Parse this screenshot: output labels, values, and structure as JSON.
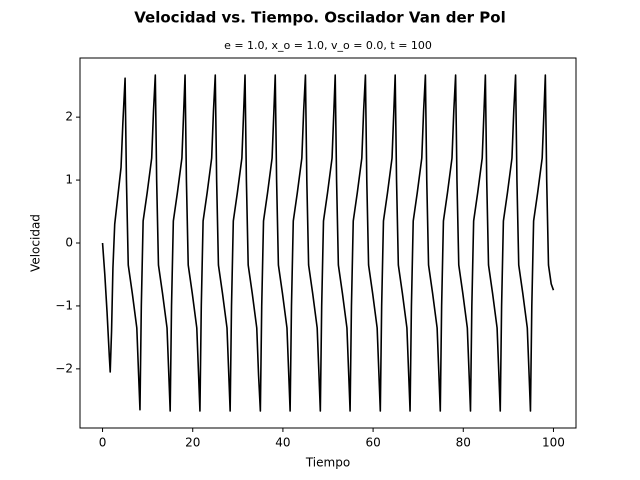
{
  "chart_data": {
    "type": "line",
    "title": "Velocidad vs. Tiempo. Oscilador Van der Pol",
    "subtitle": "e = 1.0, x_o = 1.0, v_o = 0.0, t = 100",
    "x_label": "Tiempo",
    "y_label": "Velocidad",
    "xlim": [
      -5,
      105
    ],
    "ylim": [
      -2.94,
      2.94
    ],
    "xticks": [
      0,
      20,
      40,
      60,
      80,
      100
    ],
    "yticks": [
      {
        "value": -2,
        "label": "−2"
      },
      {
        "value": -1,
        "label": "−1"
      },
      0,
      1,
      2
    ],
    "grid": false,
    "series": [
      {
        "color": "#000000",
        "x": [
          0,
          0.5,
          1.0,
          1.5,
          1.7,
          2.0,
          2.3,
          2.7,
          3.4,
          4.1,
          4.5,
          5.0,
          5.3,
          5.7,
          6.6,
          7.6,
          8.0,
          8.3,
          8.6,
          9.0,
          9.9,
          10.9,
          11.3,
          11.7,
          12.0,
          12.4,
          13.3,
          14.3,
          14.7,
          15.0,
          15.3,
          15.7,
          16.6,
          17.6,
          18.0,
          18.3,
          18.6,
          19.0,
          19.9,
          20.9,
          21.3,
          21.6,
          21.9,
          22.3,
          23.2,
          24.2,
          24.6,
          25.0,
          25.3,
          25.7,
          26.6,
          27.6,
          28.0,
          28.3,
          28.6,
          29.0,
          29.9,
          30.9,
          31.3,
          31.6,
          31.9,
          32.3,
          33.2,
          34.2,
          34.6,
          35.0,
          35.3,
          35.7,
          36.6,
          37.6,
          38.0,
          38.3,
          38.6,
          39.0,
          39.9,
          40.9,
          41.3,
          41.6,
          41.9,
          42.3,
          43.2,
          44.2,
          44.6,
          45.0,
          45.3,
          45.7,
          46.6,
          47.6,
          48.0,
          48.3,
          48.6,
          49.0,
          49.9,
          50.9,
          51.3,
          51.6,
          51.9,
          52.3,
          53.2,
          54.2,
          54.6,
          54.9,
          55.2,
          55.6,
          56.5,
          57.5,
          57.9,
          58.3,
          58.6,
          59.0,
          59.9,
          60.9,
          61.3,
          61.6,
          61.9,
          62.3,
          63.2,
          64.2,
          64.6,
          64.9,
          65.2,
          65.6,
          66.5,
          67.5,
          67.9,
          68.2,
          68.5,
          68.9,
          69.8,
          70.8,
          71.2,
          71.6,
          71.9,
          72.3,
          73.2,
          74.2,
          74.6,
          74.9,
          75.2,
          75.6,
          76.5,
          77.5,
          77.9,
          78.3,
          78.6,
          79.0,
          79.9,
          80.9,
          81.3,
          81.6,
          81.9,
          82.3,
          83.2,
          84.2,
          84.6,
          84.9,
          85.2,
          85.6,
          86.5,
          87.5,
          87.9,
          88.2,
          88.5,
          88.9,
          89.8,
          90.8,
          91.2,
          91.6,
          91.9,
          92.3,
          93.2,
          94.2,
          94.6,
          94.9,
          95.2,
          95.6,
          96.5,
          97.5,
          97.9,
          98.2,
          98.5,
          98.9,
          99.5,
          100
        ],
        "values": [
          0,
          -0.5,
          -1.1,
          -1.8,
          -2.05,
          -1.4,
          -0.4,
          0.3,
          0.75,
          1.2,
          1.9,
          2.62,
          1.0,
          -0.35,
          -0.8,
          -1.35,
          -2.1,
          -2.65,
          -1.0,
          0.35,
          0.8,
          1.35,
          2.1,
          2.67,
          1.0,
          -0.35,
          -0.8,
          -1.35,
          -2.1,
          -2.67,
          -1.0,
          0.35,
          0.8,
          1.35,
          2.1,
          2.67,
          1.0,
          -0.35,
          -0.8,
          -1.35,
          -2.1,
          -2.67,
          -1.0,
          0.35,
          0.8,
          1.35,
          2.1,
          2.67,
          1.0,
          -0.35,
          -0.8,
          -1.35,
          -2.1,
          -2.67,
          -1.0,
          0.35,
          0.8,
          1.35,
          2.1,
          2.67,
          1.0,
          -0.35,
          -0.8,
          -1.35,
          -2.1,
          -2.67,
          -1.0,
          0.35,
          0.8,
          1.35,
          2.1,
          2.67,
          1.0,
          -0.35,
          -0.8,
          -1.35,
          -2.1,
          -2.67,
          -1.0,
          0.35,
          0.8,
          1.35,
          2.1,
          2.67,
          1.0,
          -0.35,
          -0.8,
          -1.35,
          -2.1,
          -2.67,
          -1.0,
          0.35,
          0.8,
          1.35,
          2.1,
          2.67,
          1.0,
          -0.35,
          -0.8,
          -1.35,
          -2.1,
          -2.67,
          -1.0,
          0.35,
          0.8,
          1.35,
          2.1,
          2.67,
          1.0,
          -0.35,
          -0.8,
          -1.35,
          -2.1,
          -2.67,
          -1.0,
          0.35,
          0.8,
          1.35,
          2.1,
          2.67,
          1.0,
          -0.35,
          -0.8,
          -1.35,
          -2.1,
          -2.67,
          -1.0,
          0.35,
          0.8,
          1.35,
          2.1,
          2.67,
          1.0,
          -0.35,
          -0.8,
          -1.35,
          -2.1,
          -2.67,
          -1.0,
          0.35,
          0.8,
          1.35,
          2.1,
          2.67,
          1.0,
          -0.35,
          -0.8,
          -1.35,
          -2.1,
          -2.67,
          -1.0,
          0.35,
          0.8,
          1.35,
          2.1,
          2.67,
          1.0,
          -0.35,
          -0.8,
          -1.35,
          -2.1,
          -2.67,
          -1.0,
          0.35,
          0.8,
          1.35,
          2.1,
          2.67,
          1.0,
          -0.35,
          -0.8,
          -1.35,
          -2.1,
          -2.67,
          -1.0,
          0.35,
          0.8,
          1.35,
          2.1,
          2.67,
          1.0,
          -0.35,
          -0.65,
          -0.75
        ]
      }
    ]
  }
}
